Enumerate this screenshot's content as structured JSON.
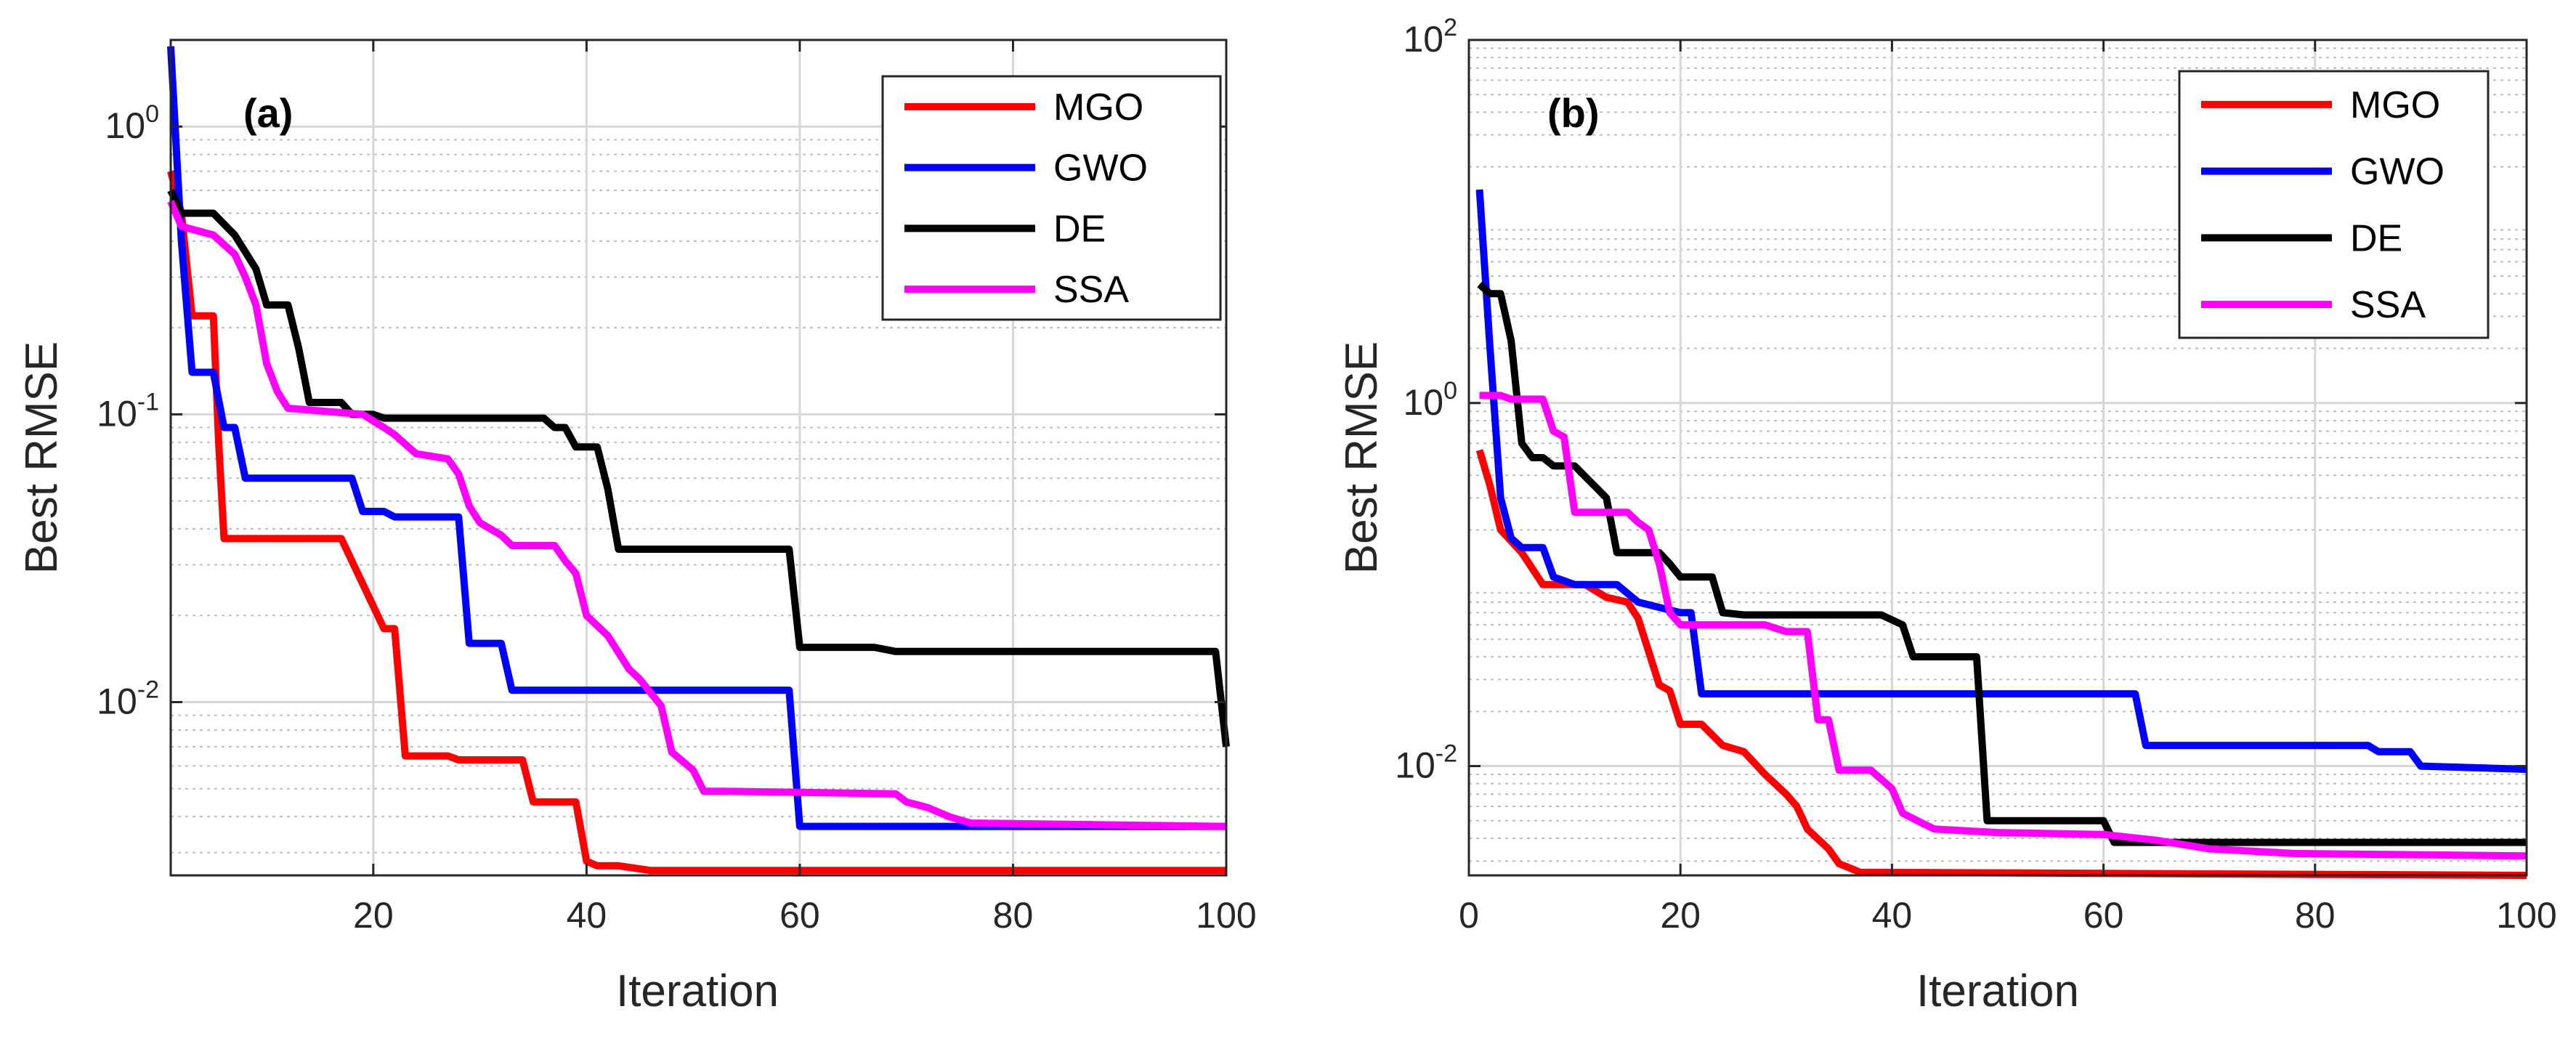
{
  "chart_data": [
    {
      "type": "line",
      "panel_label": "(a)",
      "xlabel": "Iteration",
      "ylabel": "Best RMSE",
      "yscale": "log",
      "xlim": [
        1,
        100
      ],
      "ylim": [
        0.0025,
        2.0
      ],
      "xticks": [
        20,
        40,
        60,
        80,
        100
      ],
      "yticks": [
        {
          "base": "10",
          "exp": "-2",
          "value": 0.01
        },
        {
          "base": "10",
          "exp": "-1",
          "value": 0.1
        },
        {
          "base": "10",
          "exp": "0",
          "value": 1
        }
      ],
      "grid": true,
      "legend_position": "top-right",
      "series": [
        {
          "name": "MGO",
          "color": "#ff0000",
          "points": [
            [
              1,
              0.7
            ],
            [
              2,
              0.5
            ],
            [
              3,
              0.22
            ],
            [
              5,
              0.22
            ],
            [
              5.5,
              0.08
            ],
            [
              6,
              0.037
            ],
            [
              17,
              0.037
            ],
            [
              21,
              0.018
            ],
            [
              22,
              0.018
            ],
            [
              23,
              0.0065
            ],
            [
              27,
              0.0065
            ],
            [
              28,
              0.0063
            ],
            [
              34,
              0.0063
            ],
            [
              35,
              0.0045
            ],
            [
              39,
              0.0045
            ],
            [
              40,
              0.0028
            ],
            [
              41,
              0.0027
            ],
            [
              43,
              0.0027
            ],
            [
              46,
              0.0026
            ],
            [
              100,
              0.0026
            ]
          ]
        },
        {
          "name": "GWO",
          "color": "#0000ff",
          "points": [
            [
              1,
              1.9
            ],
            [
              2,
              0.4
            ],
            [
              3,
              0.14
            ],
            [
              5,
              0.14
            ],
            [
              6,
              0.09
            ],
            [
              7,
              0.09
            ],
            [
              8,
              0.06
            ],
            [
              18,
              0.06
            ],
            [
              19,
              0.046
            ],
            [
              21,
              0.046
            ],
            [
              22,
              0.044
            ],
            [
              28,
              0.044
            ],
            [
              29,
              0.016
            ],
            [
              31,
              0.016
            ],
            [
              32,
              0.016
            ],
            [
              33,
              0.011
            ],
            [
              59,
              0.011
            ],
            [
              60,
              0.0037
            ],
            [
              100,
              0.0037
            ]
          ]
        },
        {
          "name": "DE",
          "color": "#000000",
          "points": [
            [
              1,
              0.6
            ],
            [
              2,
              0.5
            ],
            [
              5,
              0.5
            ],
            [
              7,
              0.42
            ],
            [
              9,
              0.32
            ],
            [
              10,
              0.24
            ],
            [
              12,
              0.24
            ],
            [
              13,
              0.17
            ],
            [
              14,
              0.11
            ],
            [
              17,
              0.11
            ],
            [
              18,
              0.1
            ],
            [
              20,
              0.1
            ],
            [
              21,
              0.097
            ],
            [
              36,
              0.097
            ],
            [
              37,
              0.09
            ],
            [
              38,
              0.09
            ],
            [
              39,
              0.077
            ],
            [
              41,
              0.077
            ],
            [
              42,
              0.055
            ],
            [
              43,
              0.034
            ],
            [
              59,
              0.034
            ],
            [
              60,
              0.0155
            ],
            [
              67,
              0.0155
            ],
            [
              69,
              0.015
            ],
            [
              98,
              0.015
            ],
            [
              99,
              0.015
            ],
            [
              100,
              0.007
            ]
          ]
        },
        {
          "name": "SSA",
          "color": "#ff00ff",
          "points": [
            [
              1,
              0.55
            ],
            [
              2,
              0.45
            ],
            [
              5,
              0.42
            ],
            [
              7,
              0.36
            ],
            [
              8,
              0.3
            ],
            [
              9,
              0.24
            ],
            [
              10,
              0.15
            ],
            [
              11,
              0.12
            ],
            [
              12,
              0.105
            ],
            [
              19,
              0.1
            ],
            [
              21,
              0.09
            ],
            [
              22,
              0.085
            ],
            [
              24,
              0.073
            ],
            [
              27,
              0.07
            ],
            [
              28,
              0.062
            ],
            [
              29,
              0.048
            ],
            [
              30,
              0.042
            ],
            [
              32,
              0.038
            ],
            [
              33,
              0.035
            ],
            [
              37,
              0.035
            ],
            [
              38,
              0.031
            ],
            [
              39,
              0.028
            ],
            [
              40,
              0.02
            ],
            [
              42,
              0.017
            ],
            [
              44,
              0.013
            ],
            [
              45,
              0.012
            ],
            [
              47,
              0.0097
            ],
            [
              48,
              0.0067
            ],
            [
              50,
              0.0058
            ],
            [
              51,
              0.0049
            ],
            [
              53,
              0.0049
            ],
            [
              69,
              0.0048
            ],
            [
              70,
              0.0045
            ],
            [
              72,
              0.0043
            ],
            [
              74,
              0.004
            ],
            [
              76,
              0.0038
            ],
            [
              100,
              0.0037
            ]
          ]
        }
      ]
    },
    {
      "type": "line",
      "panel_label": "(b)",
      "xlabel": "Iteration",
      "ylabel": "Best RMSE",
      "yscale": "log",
      "xlim": [
        0,
        100
      ],
      "ylim": [
        0.0025,
        100
      ],
      "xticks": [
        0,
        20,
        40,
        60,
        80,
        100
      ],
      "yticks": [
        {
          "base": "10",
          "exp": "-2",
          "value": 0.01
        },
        {
          "base": "10",
          "exp": "0",
          "value": 1
        },
        {
          "base": "10",
          "exp": "2",
          "value": 100
        }
      ],
      "grid": true,
      "legend_position": "top-right",
      "series": [
        {
          "name": "MGO",
          "color": "#ff0000",
          "points": [
            [
              1,
              0.55
            ],
            [
              2,
              0.35
            ],
            [
              3,
              0.2
            ],
            [
              5,
              0.15
            ],
            [
              7,
              0.1
            ],
            [
              11,
              0.1
            ],
            [
              13,
              0.085
            ],
            [
              15,
              0.08
            ],
            [
              16,
              0.065
            ],
            [
              18,
              0.028
            ],
            [
              19,
              0.026
            ],
            [
              20,
              0.017
            ],
            [
              22,
              0.017
            ],
            [
              24,
              0.013
            ],
            [
              26,
              0.012
            ],
            [
              28,
              0.009
            ],
            [
              30,
              0.007
            ],
            [
              31,
              0.006
            ],
            [
              32,
              0.0045
            ],
            [
              34,
              0.0035
            ],
            [
              35,
              0.0029
            ],
            [
              37,
              0.0026
            ],
            [
              100,
              0.0025
            ]
          ]
        },
        {
          "name": "GWO",
          "color": "#0000ff",
          "points": [
            [
              1,
              15
            ],
            [
              2,
              2
            ],
            [
              3,
              0.3
            ],
            [
              4,
              0.18
            ],
            [
              5,
              0.16
            ],
            [
              7,
              0.16
            ],
            [
              8,
              0.11
            ],
            [
              10,
              0.1
            ],
            [
              14,
              0.1
            ],
            [
              16,
              0.08
            ],
            [
              20,
              0.07
            ],
            [
              21,
              0.07
            ],
            [
              22,
              0.025
            ],
            [
              63,
              0.025
            ],
            [
              64,
              0.013
            ],
            [
              85,
              0.013
            ],
            [
              86,
              0.012
            ],
            [
              89,
              0.012
            ],
            [
              90,
              0.01
            ],
            [
              100,
              0.0096
            ]
          ]
        },
        {
          "name": "DE",
          "color": "#000000",
          "points": [
            [
              1,
              4.5
            ],
            [
              2,
              4
            ],
            [
              3,
              4
            ],
            [
              4,
              2.2
            ],
            [
              5,
              0.6
            ],
            [
              6,
              0.5
            ],
            [
              7,
              0.5
            ],
            [
              8,
              0.45
            ],
            [
              10,
              0.45
            ],
            [
              13,
              0.3
            ],
            [
              14,
              0.15
            ],
            [
              18,
              0.15
            ],
            [
              19,
              0.13
            ],
            [
              20,
              0.11
            ],
            [
              23,
              0.11
            ],
            [
              24,
              0.07
            ],
            [
              26,
              0.068
            ],
            [
              39,
              0.068
            ],
            [
              41,
              0.06
            ],
            [
              42,
              0.04
            ],
            [
              47,
              0.04
            ],
            [
              48,
              0.04
            ],
            [
              49,
              0.005
            ],
            [
              60,
              0.005
            ],
            [
              61,
              0.0038
            ],
            [
              100,
              0.0038
            ]
          ]
        },
        {
          "name": "SSA",
          "color": "#ff00ff",
          "points": [
            [
              1,
              1.1
            ],
            [
              2,
              1.1
            ],
            [
              3,
              1.1
            ],
            [
              4,
              1.05
            ],
            [
              5,
              1.05
            ],
            [
              7,
              1.05
            ],
            [
              8,
              0.7
            ],
            [
              9,
              0.65
            ],
            [
              10,
              0.25
            ],
            [
              15,
              0.25
            ],
            [
              16,
              0.22
            ],
            [
              17,
              0.2
            ],
            [
              18,
              0.13
            ],
            [
              19,
              0.07
            ],
            [
              20,
              0.06
            ],
            [
              28,
              0.06
            ],
            [
              30,
              0.055
            ],
            [
              32,
              0.055
            ],
            [
              33,
              0.018
            ],
            [
              34,
              0.018
            ],
            [
              35,
              0.0095
            ],
            [
              38,
              0.0095
            ],
            [
              40,
              0.0075
            ],
            [
              41,
              0.0055
            ],
            [
              43,
              0.0048
            ],
            [
              44,
              0.0045
            ],
            [
              50,
              0.0043
            ],
            [
              60,
              0.0042
            ],
            [
              65,
              0.0039
            ],
            [
              70,
              0.0035
            ],
            [
              78,
              0.0033
            ],
            [
              100,
              0.0032
            ]
          ]
        }
      ]
    }
  ]
}
